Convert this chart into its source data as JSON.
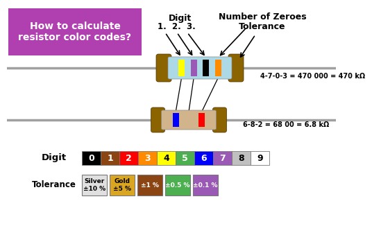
{
  "title_text": "How to calculate\nresistor color codes?",
  "title_bg": "#B03FB0",
  "title_text_color": "#FFFFFF",
  "digit_colors": [
    "#000000",
    "#8B4513",
    "#FF0000",
    "#FF8C00",
    "#FFFF00",
    "#4CAF50",
    "#0000FF",
    "#9B59B6",
    "#C0C0C0",
    "#FFFFFF"
  ],
  "digit_text_colors": [
    "#FFFFFF",
    "#FFFFFF",
    "#FFFFFF",
    "#FFFFFF",
    "#000000",
    "#FFFFFF",
    "#FFFFFF",
    "#FFFFFF",
    "#000000",
    "#000000"
  ],
  "digit_labels": [
    "0",
    "1",
    "2",
    "3",
    "4",
    "5",
    "6",
    "7",
    "8",
    "9"
  ],
  "tolerance_labels": [
    "Silver\n±10 %",
    "Gold\n±5 %",
    "±1 %",
    "±0.5 %",
    "±0.1 %"
  ],
  "tolerance_colors": [
    "#E0E0E0",
    "#DAA520",
    "#8B4513",
    "#4CAF50",
    "#9B59B6"
  ],
  "tolerance_text_colors": [
    "#000000",
    "#000000",
    "#FFFFFF",
    "#FFFFFF",
    "#FFFFFF"
  ],
  "resistor1_bands": [
    "#FFFF00",
    "#9B59B6",
    "#000000",
    "#FF8C00"
  ],
  "resistor1_body": "#ADD8E6",
  "resistor2_bands": [
    "#0000FF",
    "#D2B48C",
    "#FF0000"
  ],
  "resistor2_body": "#D2B48C",
  "end_color": "#8B6400",
  "wire_color": "#A0A0A0",
  "resistor1_label": "4-7-0-3 = 470 000 = 470 kΩ",
  "resistor2_label": "6-8-2 = 68 00 = 6.8 kΩ",
  "bg_color": "#FFFFFF"
}
